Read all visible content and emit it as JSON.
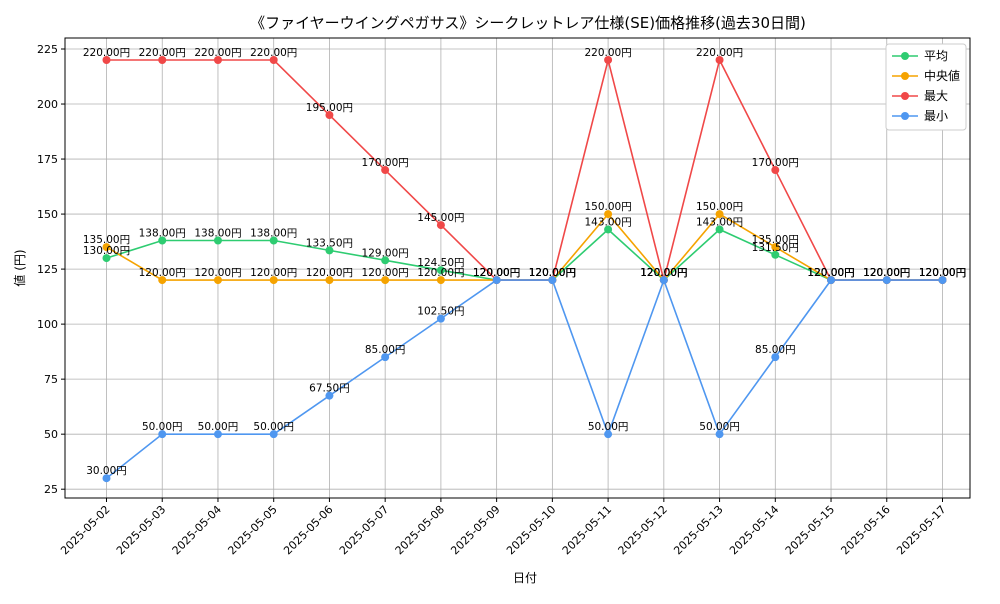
{
  "chart_data": {
    "type": "line",
    "title": "《ファイヤーウイングペガサス》シークレットレア仕様(SE)価格推移(過去30日間)",
    "xlabel": "日付",
    "ylabel": "値 (円)",
    "ylim": [
      21,
      230
    ],
    "yticks": [
      25,
      50,
      75,
      100,
      125,
      150,
      175,
      200,
      225
    ],
    "grid": true,
    "legend_position": "top-right",
    "label_suffix": "円",
    "categories": [
      "2025-05-02",
      "2025-05-03",
      "2025-05-04",
      "2025-05-05",
      "2025-05-06",
      "2025-05-07",
      "2025-05-08",
      "2025-05-09",
      "2025-05-10",
      "2025-05-11",
      "2025-05-12",
      "2025-05-13",
      "2025-05-14",
      "2025-05-15",
      "2025-05-16",
      "2025-05-17"
    ],
    "series": [
      {
        "name": "平均",
        "color": "#2ecc71",
        "values": [
          130.0,
          138.0,
          138.0,
          138.0,
          133.5,
          129.0,
          124.5,
          120.0,
          120.0,
          143.0,
          120.0,
          143.0,
          131.5,
          120.0,
          120.0,
          120.0
        ]
      },
      {
        "name": "中央値",
        "color": "#f5a300",
        "values": [
          135.0,
          120.0,
          120.0,
          120.0,
          120.0,
          120.0,
          120.0,
          120.0,
          120.0,
          150.0,
          120.0,
          150.0,
          135.0,
          120.0,
          120.0,
          120.0
        ]
      },
      {
        "name": "最大",
        "color": "#f04848",
        "values": [
          220.0,
          220.0,
          220.0,
          220.0,
          195.0,
          170.0,
          145.0,
          120.0,
          120.0,
          220.0,
          120.0,
          220.0,
          170.0,
          120.0,
          120.0,
          120.0
        ]
      },
      {
        "name": "最小",
        "color": "#4f97f0",
        "values": [
          30.0,
          50.0,
          50.0,
          50.0,
          67.5,
          85.0,
          102.5,
          120.0,
          120.0,
          50.0,
          120.0,
          50.0,
          85.0,
          120.0,
          120.0,
          120.0
        ]
      }
    ]
  }
}
